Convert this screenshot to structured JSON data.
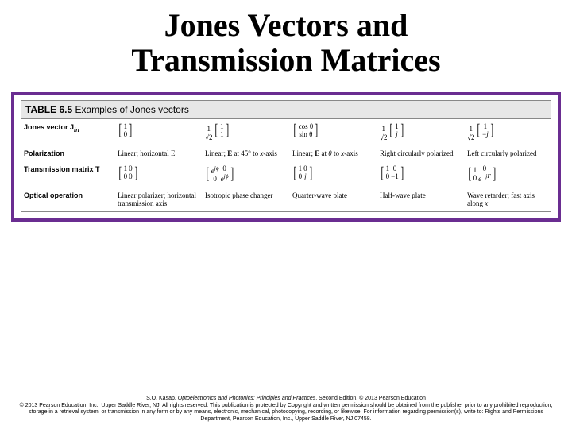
{
  "title_line1": "Jones Vectors and",
  "title_line2": "Transmission Matrices",
  "table_title_bold": "TABLE 6.5",
  "table_title_rest": " Examples of Jones vectors",
  "row_labels": [
    "Jones vector J_in",
    "Polarization",
    "Transmission matrix T",
    "Optical operation"
  ],
  "cells": {
    "polarization": [
      "Linear; horizontal E",
      "Linear; E at 45° to x-axis",
      "Linear; E at θ to x-axis",
      "Right circularly polarized",
      "Left circularly polarized"
    ],
    "operation": [
      "Linear polarizer; horizontal transmission axis",
      "Isotropic phase changer",
      "Quarter-wave plate",
      "Half-wave plate",
      "Wave retarder; fast axis along x"
    ]
  },
  "footer": {
    "l1": "S.O. Kasap, Optoelectronics and Photonics: Principles and Practices, Second Edition, © 2013 Pearson Education",
    "l2": "© 2013 Pearson Education, Inc., Upper Saddle River, NJ. All rights reserved. This publication is protected by Copyright and written permission should be obtained from the publisher prior to any prohibited reproduction, storage in a retrieval system, or transmission in any form or by any means, electronic, mechanical, photocopying, recording, or likewise. For information regarding permission(s), write to: Rights and Permissions Department, Pearson Education, Inc., Upper Saddle River, NJ 07458."
  },
  "styling": {
    "border_color": "#6a2d91",
    "title_fontsize": 40,
    "cell_fontsize": 9,
    "footer_fontsize": 7,
    "background": "#ffffff"
  }
}
